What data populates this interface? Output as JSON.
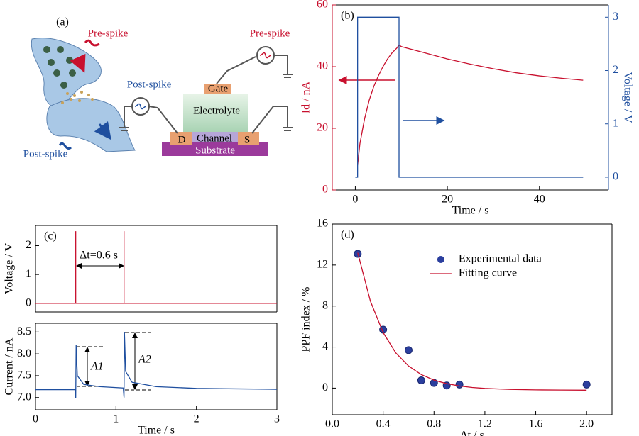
{
  "diagram": {
    "panel": "(a)",
    "pre_spike_left": "Pre-spike",
    "post_spike_top": "Post-spike",
    "post_spike_bottom": "Post-spike",
    "pre_spike_right": "Pre-spike",
    "gate": "Gate",
    "electrolyte": "Electrolyte",
    "channel": "Channel",
    "drain": "D",
    "source": "S",
    "substrate": "Substrate"
  },
  "chart_data": [
    {
      "type": "line",
      "panel": "(b)",
      "xlabel": "Time / s",
      "ylabel": "Id / nA",
      "y2label": "Voltage / V",
      "xlim": [
        -5,
        55
      ],
      "xticks": [
        0,
        20,
        40
      ],
      "ylim": [
        0,
        60
      ],
      "yticks": [
        0,
        20,
        40,
        60
      ],
      "y2lim": [
        -0.24,
        3.23
      ],
      "y2ticks": [
        0,
        1,
        2,
        3
      ],
      "ycolor": "#c8102e",
      "y2color": "#1f4f9f",
      "series": [
        {
          "color": "#c8102e",
          "x": [
            0.5,
            1,
            2,
            3,
            4,
            5,
            6,
            7,
            8,
            9,
            9.5,
            10,
            15,
            20,
            25,
            30,
            35,
            40,
            45,
            49.5
          ],
          "values": [
            8,
            15,
            23,
            29,
            33.5,
            37,
            40,
            42.5,
            44.5,
            46,
            47,
            46.5,
            44.5,
            42.5,
            40.8,
            39.3,
            38,
            37,
            36.2,
            35.6
          ]
        },
        {
          "color": "#1f4f9f",
          "axis": "y2",
          "x": [
            0,
            0.5,
            0.5,
            9.5,
            9.5,
            49.5
          ],
          "values": [
            0,
            0,
            3,
            3,
            0,
            0
          ]
        }
      ]
    },
    {
      "type": "line",
      "panel": "(c)",
      "ylabel": "Voltage / V",
      "xlim": [
        0,
        3
      ],
      "ylim": [
        -0.3,
        2.7
      ],
      "yticks": [
        0,
        1,
        2
      ],
      "annotation": "Δt=0.6 s",
      "series": [
        {
          "color": "#c8102e",
          "x": [
            0,
            0.5,
            0.5,
            0.5,
            1.1,
            1.1,
            1.1,
            3
          ],
          "values": [
            0,
            0,
            2.5,
            0,
            0,
            2.5,
            0,
            0
          ]
        }
      ]
    },
    {
      "type": "line",
      "xlabel": "Time / s",
      "ylabel": "Current / nA",
      "xlim": [
        0,
        3
      ],
      "xticks": [
        0,
        1,
        2,
        3
      ],
      "ylim": [
        6.72,
        8.7
      ],
      "yticks": [
        {
          "value": 7,
          "label": "7.0"
        },
        7.5,
        {
          "value": 8,
          "label": "8.0"
        },
        8.5
      ],
      "annotations": [
        "A1",
        "A2"
      ],
      "series": [
        {
          "color": "#1f4f9f",
          "x": [
            0,
            0.49,
            0.5,
            0.505,
            0.52,
            0.6,
            0.8,
            1.09,
            1.1,
            1.105,
            1.12,
            1.2,
            1.5,
            2,
            2.5,
            3
          ],
          "values": [
            7.18,
            7.18,
            6.98,
            8.2,
            7.5,
            7.3,
            7.25,
            7.22,
            7.0,
            8.5,
            7.6,
            7.35,
            7.25,
            7.21,
            7.2,
            7.19
          ]
        }
      ]
    },
    {
      "type": "scatter",
      "panel": "(d)",
      "xlabel": "Δt / s",
      "ylabel": "PPF index / %",
      "xlim": [
        0,
        2.2
      ],
      "xticks": [
        {
          "value": 0,
          "label": "0.0"
        },
        0.4,
        0.8,
        1.2,
        1.6,
        {
          "value": 2,
          "label": "2.0"
        }
      ],
      "ylim": [
        -2.6,
        16
      ],
      "yticks": [
        0,
        4,
        8,
        12,
        16
      ],
      "legend": "upper right",
      "series": [
        {
          "name": "Experimental data",
          "type": "scatter",
          "color": "#2b3f9e",
          "x": [
            0.2,
            0.4,
            0.6,
            0.7,
            0.8,
            0.9,
            1.0,
            2.0
          ],
          "values": [
            13.1,
            5.7,
            3.7,
            0.75,
            0.5,
            0.25,
            0.35,
            0.35
          ]
        },
        {
          "name": "Fitting curve",
          "type": "line",
          "color": "#c8102e",
          "x": [
            0.2,
            0.3,
            0.4,
            0.5,
            0.6,
            0.7,
            0.8,
            0.9,
            1.0,
            1.1,
            1.2,
            1.4,
            1.6,
            1.8,
            2.0
          ],
          "values": [
            13.2,
            8.47,
            5.41,
            3.43,
            2.15,
            1.32,
            0.78,
            0.43,
            0.21,
            0.06,
            -0.03,
            -0.13,
            -0.17,
            -0.19,
            -0.2
          ]
        }
      ]
    }
  ]
}
